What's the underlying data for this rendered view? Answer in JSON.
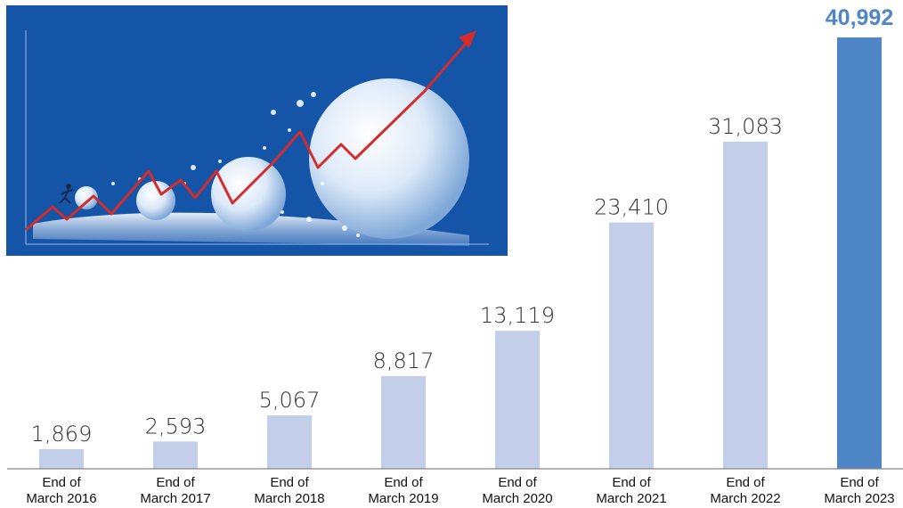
{
  "chart_data": {
    "type": "bar",
    "categories": [
      [
        "End of",
        "March 2016"
      ],
      [
        "End of",
        "March 2017"
      ],
      [
        "End of",
        "March 2018"
      ],
      [
        "End of",
        "March 2019"
      ],
      [
        "End of",
        "March 2020"
      ],
      [
        "End of",
        "March 2021"
      ],
      [
        "End of",
        "March 2022"
      ],
      [
        "End of",
        "March 2023"
      ]
    ],
    "values": [
      1869,
      2593,
      5067,
      8817,
      13119,
      23410,
      31083,
      40992
    ],
    "value_labels": [
      "1,869",
      "2,593",
      "5,067",
      "8,817",
      "13,119",
      "23,410",
      "31,083",
      "40,992"
    ],
    "highlight_index": 7,
    "ylim": [
      0,
      42000
    ],
    "grid": false,
    "colors": {
      "bar": "#c3cfe9",
      "bar_highlight": "#4f86c6",
      "baseline": "#888888"
    }
  },
  "illustration": {
    "icon": "growth-bubbles-illustration",
    "colors": {
      "background": "#1555a8",
      "trend": "#d42b2b",
      "bubble": "#dce9f8"
    }
  }
}
